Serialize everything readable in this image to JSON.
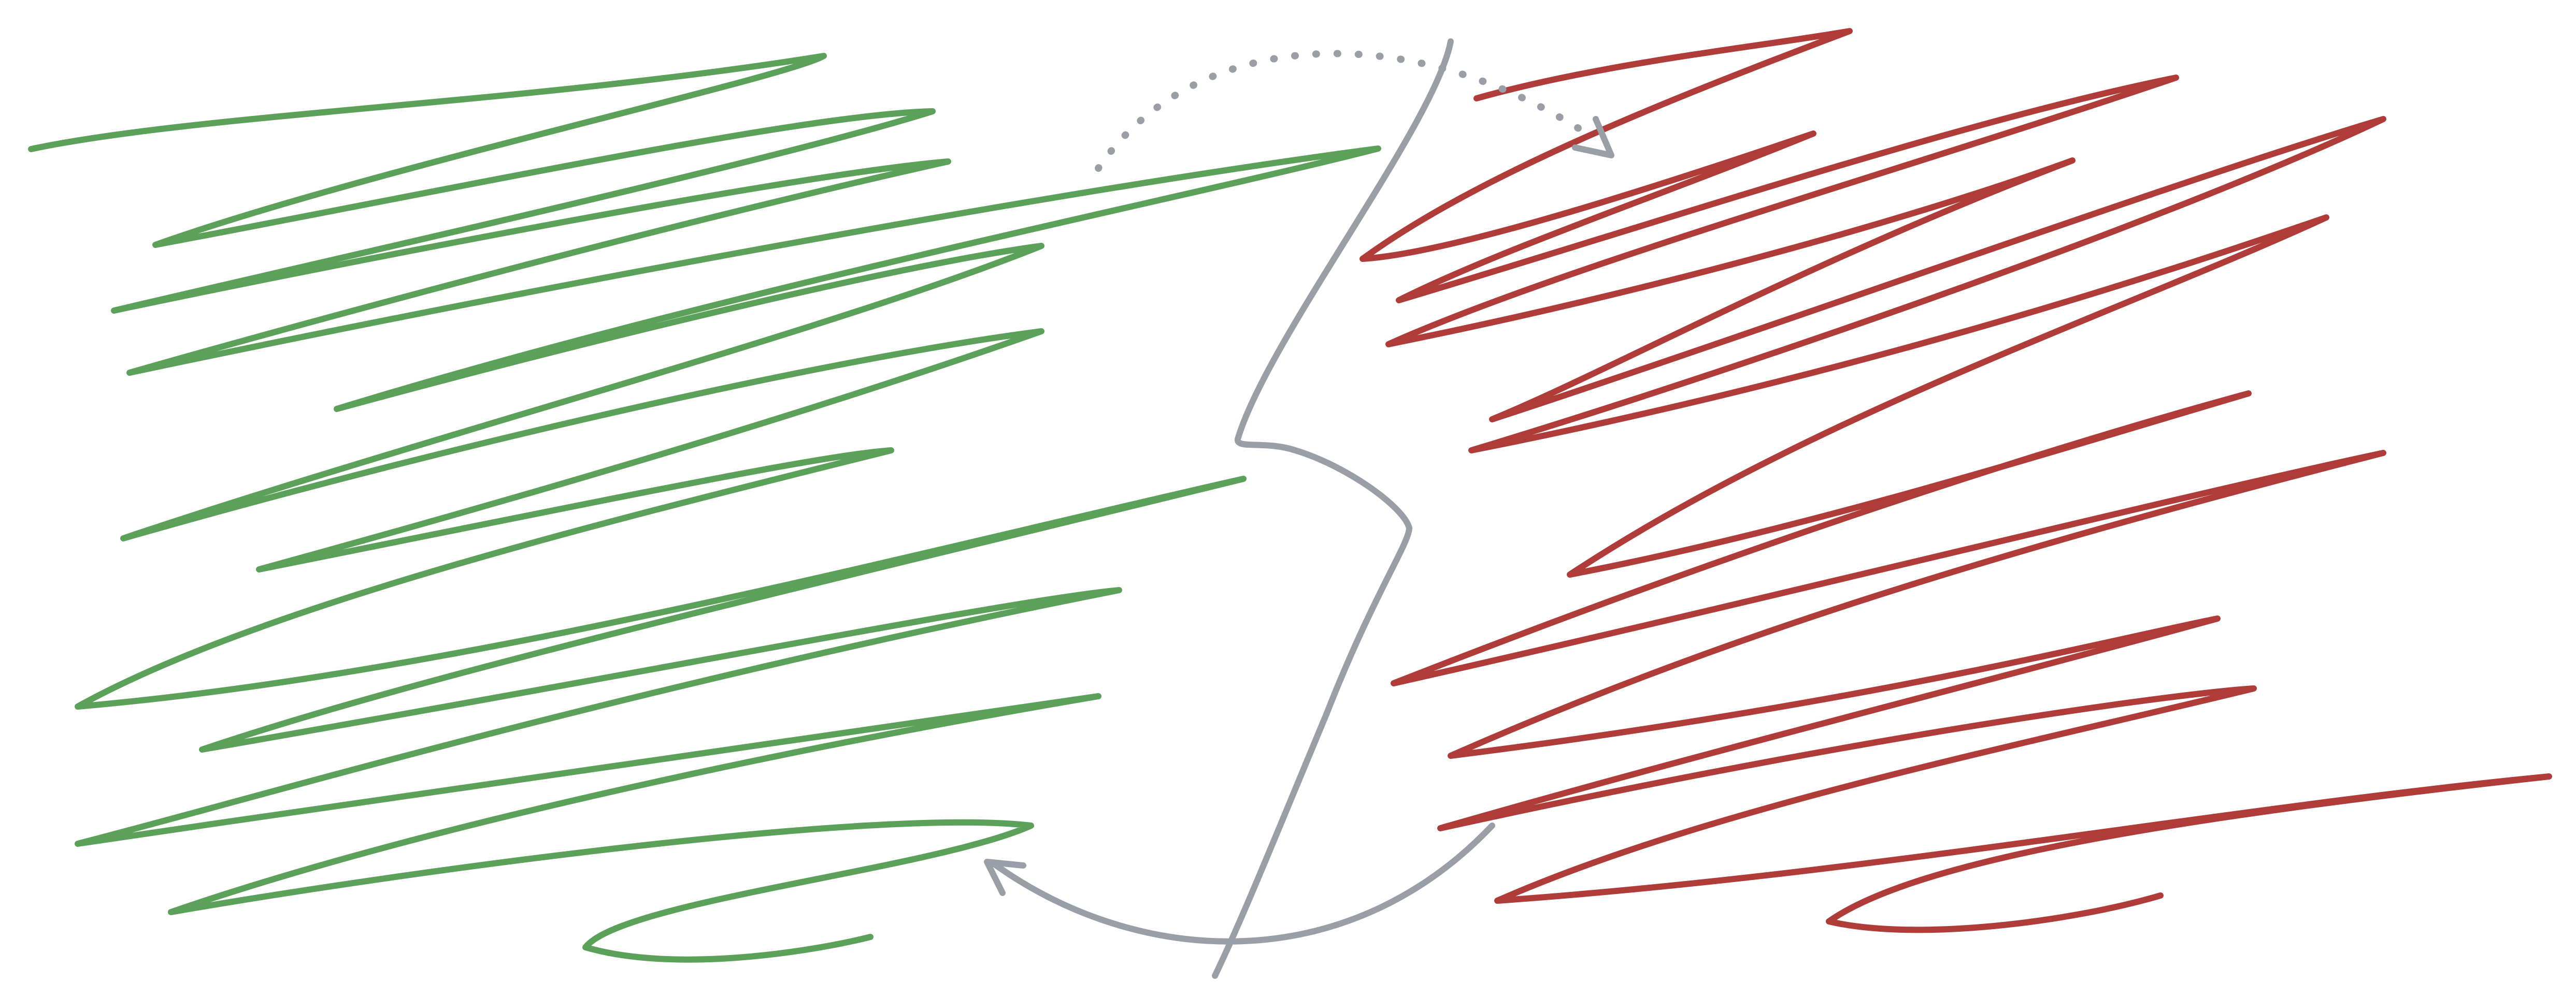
{
  "canvas": {
    "background": "#ffffff"
  },
  "colors": {
    "left_scribble": "#5ba15a",
    "right_scribble": "#b03c3a",
    "divider": "#9a9ea6",
    "arrow": "#9a9ea6"
  },
  "elements": {
    "left_scribble": "green-zigzag-scribble",
    "right_scribble": "red-zigzag-scribble",
    "divider": "gray-wavy-divider-line",
    "top_arrow": "dotted-curved-arrow-left-to-right",
    "bottom_arrow": "solid-curved-arrow-right-to-left"
  }
}
